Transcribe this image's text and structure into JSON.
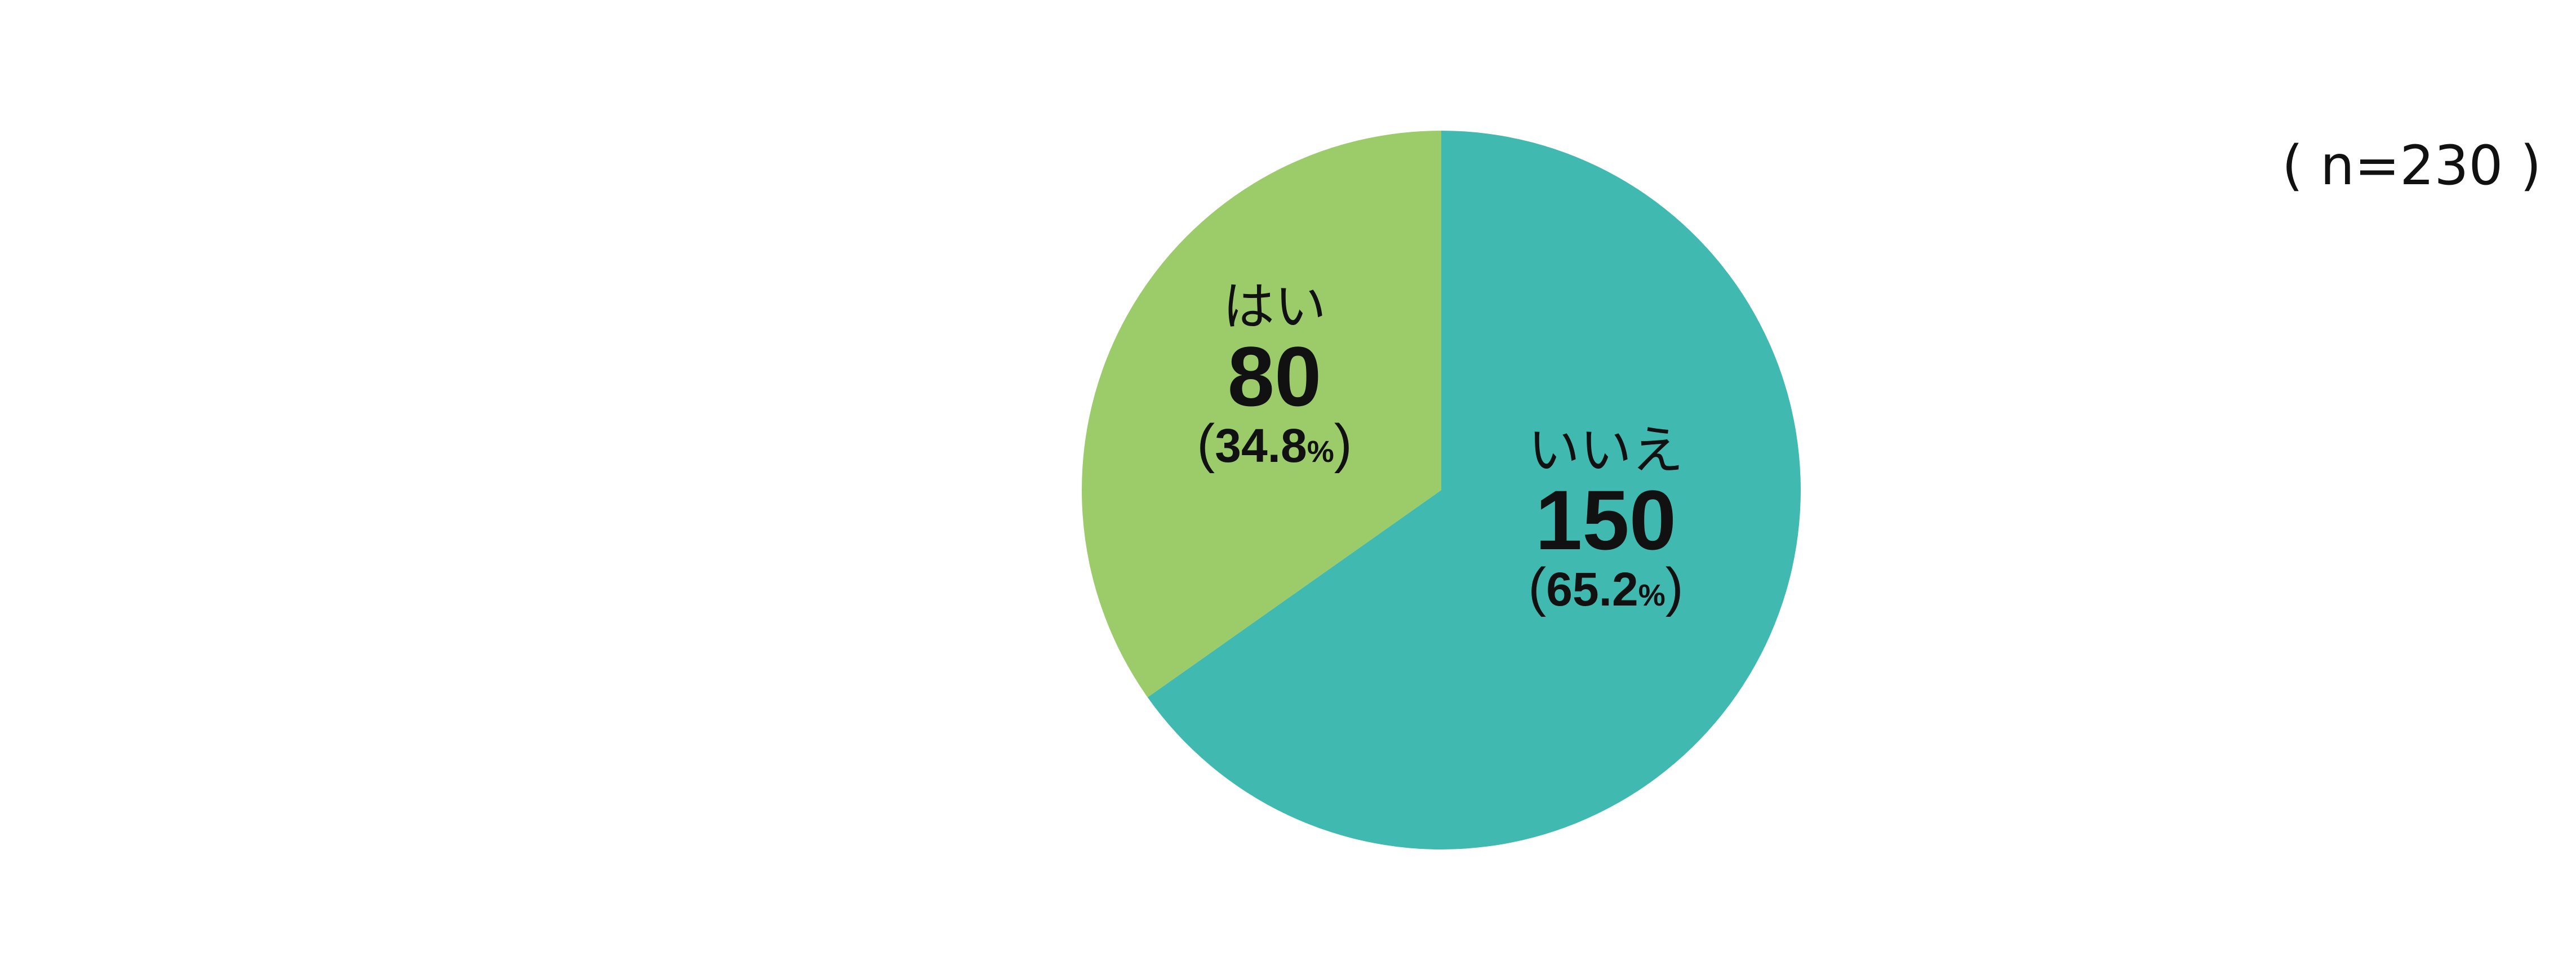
{
  "chart_data": {
    "type": "pie",
    "title": "",
    "sample_size_label": "( n=230 )",
    "start_angle": "top",
    "direction": "clockwise",
    "slices": [
      {
        "label": "いいえ",
        "value": 150,
        "percent": 65.2,
        "value_text": "150",
        "percent_text": "65.2",
        "color": "#40BAB0"
      },
      {
        "label": "はい",
        "value": 80,
        "percent": 34.8,
        "value_text": "80",
        "percent_text": "34.8",
        "color": "#9CCB6A"
      }
    ],
    "percent_sign": "%",
    "paren_open": "(",
    "paren_close": ")"
  }
}
